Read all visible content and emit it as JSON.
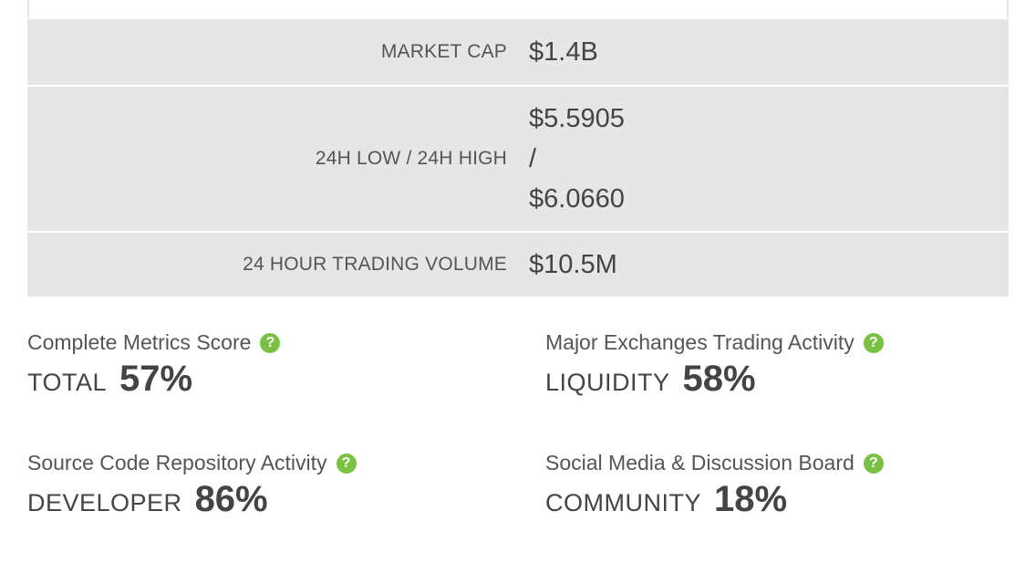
{
  "stats": {
    "market_cap": {
      "label": "MARKET CAP",
      "value": "$1.4B"
    },
    "range": {
      "label": "24H LOW / 24H HIGH",
      "low": "$5.5905",
      "separator": "/",
      "high": "$6.0660"
    },
    "volume": {
      "label": "24 HOUR TRADING VOLUME",
      "value": "$10.5M"
    }
  },
  "scores": {
    "total": {
      "title": "Complete Metrics Score",
      "label": "TOTAL",
      "value": "57%"
    },
    "liquidity": {
      "title": "Major Exchanges Trading Activity",
      "label": "LIQUIDITY",
      "value": "58%"
    },
    "developer": {
      "title": "Source Code Repository Activity",
      "label": "DEVELOPER",
      "value": "86%"
    },
    "community": {
      "title": "Social Media & Discussion Board",
      "label": "COMMUNITY",
      "value": "18%"
    }
  },
  "icons": {
    "help": "help-icon",
    "help_glyph": "?"
  },
  "colors": {
    "accent": "#7ac143",
    "row_background": "#e6e6e6",
    "text": "#444444"
  }
}
